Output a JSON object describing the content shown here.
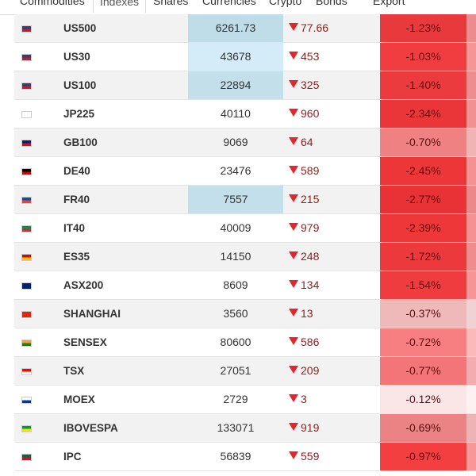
{
  "tabs": [
    "Commodities",
    "Indexes",
    "Shares",
    "Currencies",
    "Crypto",
    "Bonds",
    "Export"
  ],
  "table": {
    "rows": [
      [
        "US500",
        "6261.73",
        "77.66",
        "-1.23%"
      ],
      [
        "US30",
        "43678",
        "453",
        "-1.03%"
      ],
      [
        "US100",
        "22894",
        "325",
        "-1.40%"
      ],
      [
        "JP225",
        "40110",
        "960",
        "-2.34%"
      ],
      [
        "GB100",
        "9069",
        "64",
        "-0.70%"
      ],
      [
        "DE40",
        "23476",
        "589",
        "-2.45%"
      ],
      [
        "FR40",
        "7557",
        "215",
        "-2.77%"
      ],
      [
        "IT40",
        "40009",
        "979",
        "-2.39%"
      ],
      [
        "ES35",
        "14150",
        "248",
        "-1.72%"
      ],
      [
        "ASX200",
        "8609",
        "134",
        "-1.54%"
      ],
      [
        "SHANGHAI",
        "3560",
        "13",
        "-0.37%"
      ],
      [
        "SENSEX",
        "80600",
        "586",
        "-0.72%"
      ],
      [
        "TSX",
        "27051",
        "209",
        "-0.77%"
      ],
      [
        "MOEX",
        "2729",
        "3",
        "-0.12%"
      ],
      [
        "IBOVESPA",
        "133071",
        "919",
        "-0.69%"
      ],
      [
        "IPC",
        "56839",
        "559",
        "-0.97%"
      ]
    ]
  }
}
